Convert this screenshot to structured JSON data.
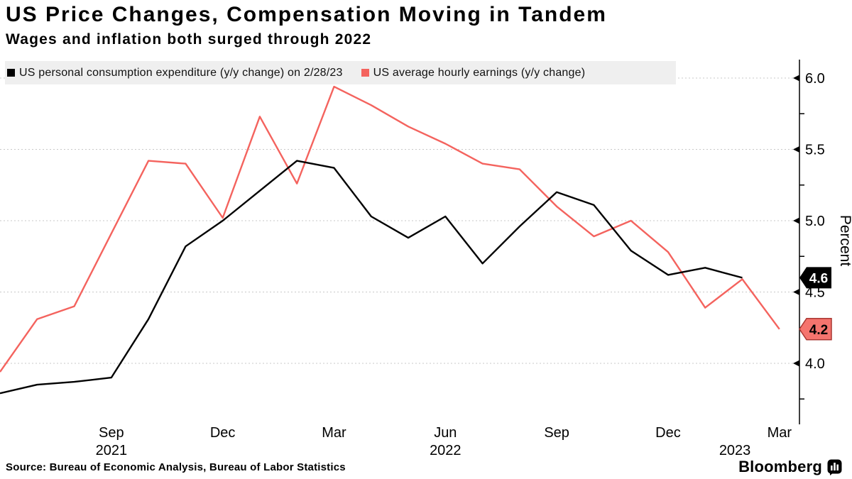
{
  "page": {
    "title": "US Price Changes, Compensation Moving in Tandem",
    "subtitle": "Wages and inflation both surged through 2022",
    "source": "Source: Bureau of Economic Analysis, Bureau of Labor Statistics",
    "brand": "Bloomberg"
  },
  "legend": {
    "items": [
      {
        "label": "US personal consumption expenditure (y/y change) on 2/28/23",
        "color": "#000000"
      },
      {
        "label": "US average hourly earnings (y/y change)",
        "color": "#f4635e"
      }
    ]
  },
  "chart_data": {
    "type": "line",
    "title": "US Price Changes, Compensation Moving in Tandem",
    "subtitle": "Wages and inflation both surged through 2022",
    "ylabel": "Percent",
    "ylim": [
      3.7,
      6.1
    ],
    "grid": "horizontal-dashed",
    "legend_position": "top",
    "categories": [
      "Jun 2021",
      "Jul 2021",
      "Aug 2021",
      "Sep 2021",
      "Oct 2021",
      "Nov 2021",
      "Dec 2021",
      "Jan 2022",
      "Feb 2022",
      "Mar 2022",
      "Apr 2022",
      "May 2022",
      "Jun 2022",
      "Jul 2022",
      "Aug 2022",
      "Sep 2022",
      "Oct 2022",
      "Nov 2022",
      "Dec 2022",
      "Jan 2023",
      "Feb 2023",
      "Mar 2023"
    ],
    "series": [
      {
        "name": "US average hourly earnings (y/y change)",
        "color": "#f4635e",
        "values": [
          3.94,
          4.31,
          4.4,
          4.91,
          5.42,
          5.4,
          5.02,
          5.73,
          5.26,
          5.94,
          5.81,
          5.66,
          5.54,
          5.4,
          5.36,
          5.1,
          4.89,
          5.0,
          4.78,
          4.39,
          4.59,
          4.24
        ],
        "end_tag": {
          "text": "4.2",
          "fill": "#f5746e",
          "stroke": "#a93631",
          "text_color": "#000000"
        }
      },
      {
        "name": "US personal consumption expenditure (y/y change) on 2/28/23",
        "color": "#000000",
        "values": [
          3.79,
          3.85,
          3.87,
          3.9,
          4.31,
          4.82,
          5.0,
          5.21,
          5.42,
          5.37,
          5.03,
          4.88,
          5.03,
          4.7,
          4.96,
          5.2,
          5.11,
          4.79,
          4.62,
          4.67,
          4.6
        ],
        "end_tag": {
          "text": "4.6",
          "fill": "#000000",
          "stroke": "none",
          "text_color": "#ffffff"
        }
      }
    ],
    "y_ticks_major": [
      {
        "label": "6.0",
        "value": 6.0
      },
      {
        "label": "5.5",
        "value": 5.5
      },
      {
        "label": "5.0",
        "value": 5.0
      },
      {
        "label": "4.5",
        "value": 4.5
      },
      {
        "label": "4.0",
        "value": 4.0
      }
    ],
    "y_ticks_minor": [
      5.75,
      5.25,
      4.75,
      4.25,
      3.75
    ],
    "x_ticks": [
      {
        "label": "Sep",
        "month_index": 3
      },
      {
        "label": "Dec",
        "month_index": 6
      },
      {
        "label": "Mar",
        "month_index": 9
      },
      {
        "label": "Jun",
        "month_index": 12
      },
      {
        "label": "Sep",
        "month_index": 15
      },
      {
        "label": "Dec",
        "month_index": 18
      },
      {
        "label": "Mar",
        "month_index": 21
      }
    ],
    "x_year_labels": [
      {
        "label": "2021",
        "month_index": 3
      },
      {
        "label": "2022",
        "month_index": 12
      },
      {
        "label": "2023",
        "month_index": 19.8
      }
    ]
  }
}
